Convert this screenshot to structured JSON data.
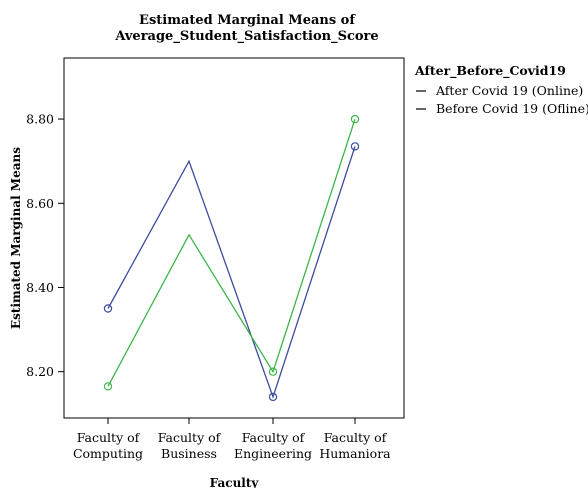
{
  "chart_data": {
    "type": "line",
    "title": [
      "Estimated Marginal Means of",
      "Average_Student_Satisfaction_Score"
    ],
    "xlabel": "Faculty",
    "ylabel": "Estimated Marginal Means",
    "categories": [
      [
        "Faculty of",
        "Computing"
      ],
      [
        "Faculty of",
        "Business"
      ],
      [
        "Faculty of",
        "Engineering"
      ],
      [
        "Faculty of",
        "Humaniora"
      ]
    ],
    "yticks": [
      8.2,
      8.4,
      8.6,
      8.8
    ],
    "ytick_labels": [
      "8.20",
      "8.40",
      "8.60",
      "8.80"
    ],
    "ylim": [
      8.09,
      8.945
    ],
    "grid": false,
    "legend": {
      "title": "After_Before_Covid19",
      "placement": "right"
    },
    "series": [
      {
        "name": "After Covid 19 (Online)",
        "color": "#3d4b9e",
        "values": [
          8.35,
          8.7,
          8.14,
          8.735
        ],
        "markers": [
          true,
          false,
          true,
          true
        ]
      },
      {
        "name": "Before Covid 19 (Ofline)",
        "color": "#3db54a",
        "values": [
          8.165,
          8.525,
          8.2,
          8.8
        ],
        "markers": [
          true,
          false,
          true,
          true
        ]
      }
    ]
  }
}
